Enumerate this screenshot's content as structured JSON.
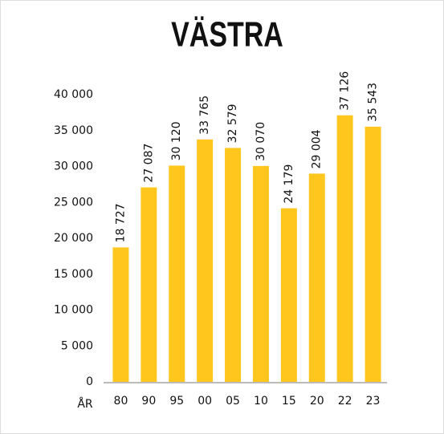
{
  "chart_data": {
    "type": "bar",
    "title": "VÄSTRA",
    "xlabel": "ÅR",
    "categories": [
      "80",
      "90",
      "95",
      "00",
      "05",
      "10",
      "15",
      "20",
      "22",
      "23"
    ],
    "values": [
      18727,
      27087,
      30120,
      33765,
      32579,
      30070,
      24179,
      29004,
      37126,
      35543
    ],
    "value_labels": [
      "18 727",
      "27 087",
      "30 120",
      "33 765",
      "32 579",
      "30 070",
      "24 179",
      "29 004",
      "37 126",
      "35 543"
    ],
    "color": "#ffc61e",
    "ylim": [
      0,
      40000
    ],
    "yticks": [
      0,
      {
        "value": 5000,
        "label": "5 000"
      },
      {
        "value": 10000,
        "label": "10 000"
      },
      {
        "value": 15000,
        "label": "15 000"
      },
      {
        "value": 20000,
        "label": "20 000"
      },
      {
        "value": 25000,
        "label": "25 000"
      },
      {
        "value": 30000,
        "label": "30 000"
      },
      {
        "value": 35000,
        "label": "35 000"
      },
      {
        "value": 40000,
        "label": "40 000"
      }
    ],
    "grid": false
  }
}
